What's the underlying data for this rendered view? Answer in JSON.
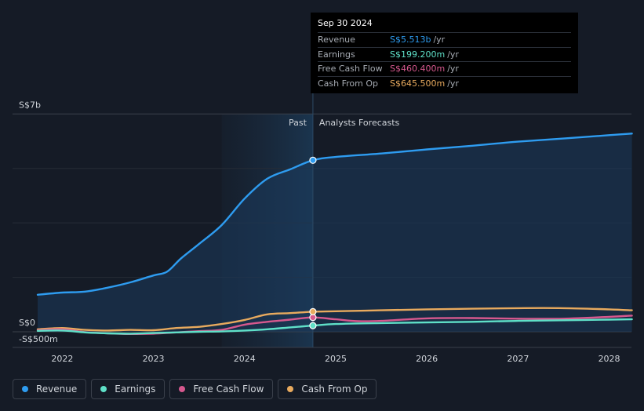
{
  "chart_data": {
    "type": "line",
    "x_ticks": [
      "2022",
      "2023",
      "2024",
      "2025",
      "2026",
      "2027",
      "2028"
    ],
    "y_labels": {
      "top": "S$7b",
      "zero": "S$0",
      "bottom": "-S$500m"
    },
    "ylim": [
      -500,
      7000
    ],
    "divider_labels": {
      "past": "Past",
      "forecast": "Analysts Forecasts"
    },
    "past_end": 2024.75,
    "past_region_start": 2023.75,
    "series": [
      {
        "name": "Revenue",
        "unit": "S$ millions",
        "color": "#2e9cf0",
        "points": [
          [
            2021.73,
            1190
          ],
          [
            2022.0,
            1260
          ],
          [
            2022.25,
            1290
          ],
          [
            2022.5,
            1420
          ],
          [
            2022.75,
            1590
          ],
          [
            2023.0,
            1810
          ],
          [
            2023.15,
            1930
          ],
          [
            2023.3,
            2350
          ],
          [
            2023.5,
            2820
          ],
          [
            2023.75,
            3430
          ],
          [
            2024.0,
            4280
          ],
          [
            2024.25,
            4920
          ],
          [
            2024.5,
            5220
          ],
          [
            2024.75,
            5513
          ],
          [
            2025.0,
            5620
          ],
          [
            2025.5,
            5730
          ],
          [
            2026.0,
            5860
          ],
          [
            2026.5,
            5980
          ],
          [
            2027.0,
            6110
          ],
          [
            2027.5,
            6210
          ],
          [
            2028.0,
            6320
          ],
          [
            2028.25,
            6370
          ]
        ]
      },
      {
        "name": "Earnings",
        "unit": "S$ millions",
        "color": "#5fe0c8",
        "points": [
          [
            2021.73,
            30
          ],
          [
            2022.0,
            40
          ],
          [
            2022.25,
            -20
          ],
          [
            2022.5,
            -50
          ],
          [
            2022.75,
            -60
          ],
          [
            2023.0,
            -40
          ],
          [
            2023.25,
            -20
          ],
          [
            2023.5,
            0
          ],
          [
            2023.75,
            10
          ],
          [
            2024.0,
            40
          ],
          [
            2024.25,
            80
          ],
          [
            2024.5,
            140
          ],
          [
            2024.75,
            199.2
          ],
          [
            2025.0,
            250
          ],
          [
            2025.5,
            280
          ],
          [
            2026.0,
            300
          ],
          [
            2026.5,
            320
          ],
          [
            2027.0,
            350
          ],
          [
            2027.5,
            370
          ],
          [
            2028.0,
            390
          ],
          [
            2028.25,
            400
          ]
        ]
      },
      {
        "name": "Free Cash Flow",
        "unit": "S$ millions",
        "color": "#d6588e",
        "points": [
          [
            2021.73,
            50
          ],
          [
            2022.0,
            80
          ],
          [
            2022.25,
            -10
          ],
          [
            2022.5,
            -50
          ],
          [
            2022.75,
            -70
          ],
          [
            2023.0,
            -60
          ],
          [
            2023.25,
            -20
          ],
          [
            2023.5,
            20
          ],
          [
            2023.75,
            60
          ],
          [
            2024.0,
            230
          ],
          [
            2024.25,
            320
          ],
          [
            2024.5,
            390
          ],
          [
            2024.75,
            460.4
          ],
          [
            2025.0,
            400
          ],
          [
            2025.25,
            340
          ],
          [
            2025.5,
            350
          ],
          [
            2026.0,
            430
          ],
          [
            2026.5,
            440
          ],
          [
            2027.0,
            420
          ],
          [
            2027.5,
            420
          ],
          [
            2028.0,
            480
          ],
          [
            2028.25,
            520
          ]
        ]
      },
      {
        "name": "Cash From Op",
        "unit": "S$ millions",
        "color": "#e8aa5e",
        "points": [
          [
            2021.73,
            80
          ],
          [
            2022.0,
            120
          ],
          [
            2022.25,
            60
          ],
          [
            2022.5,
            40
          ],
          [
            2022.75,
            60
          ],
          [
            2023.0,
            50
          ],
          [
            2023.25,
            120
          ],
          [
            2023.5,
            160
          ],
          [
            2023.75,
            250
          ],
          [
            2024.0,
            380
          ],
          [
            2024.25,
            560
          ],
          [
            2024.5,
            600
          ],
          [
            2024.75,
            645.5
          ],
          [
            2025.0,
            660
          ],
          [
            2025.5,
            690
          ],
          [
            2026.0,
            720
          ],
          [
            2026.5,
            740
          ],
          [
            2027.0,
            760
          ],
          [
            2027.5,
            760
          ],
          [
            2028.0,
            720
          ],
          [
            2028.25,
            690
          ]
        ]
      }
    ]
  },
  "tooltip": {
    "date": "Sep 30 2024",
    "rows": [
      {
        "label": "Revenue",
        "value": "S$5.513b",
        "unit": "/yr",
        "color": "#2e9cf0"
      },
      {
        "label": "Earnings",
        "value": "S$199.200m",
        "unit": "/yr",
        "color": "#5fe0c8"
      },
      {
        "label": "Free Cash Flow",
        "value": "S$460.400m",
        "unit": "/yr",
        "color": "#d6588e"
      },
      {
        "label": "Cash From Op",
        "value": "S$645.500m",
        "unit": "/yr",
        "color": "#e8aa5e"
      }
    ]
  },
  "legend": [
    {
      "label": "Revenue",
      "color": "#2e9cf0"
    },
    {
      "label": "Earnings",
      "color": "#5fe0c8"
    },
    {
      "label": "Free Cash Flow",
      "color": "#d6588e"
    },
    {
      "label": "Cash From Op",
      "color": "#e8aa5e"
    }
  ]
}
